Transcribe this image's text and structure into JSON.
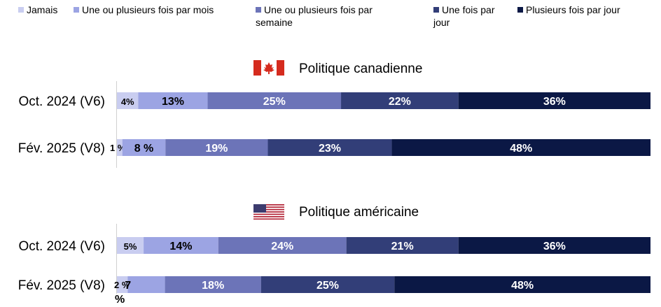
{
  "chart_data": {
    "type": "bar",
    "orientation": "horizontal-stacked-100",
    "legend": {
      "position": "top",
      "entries": [
        {
          "name": "Jamais",
          "color": "#c9cdf0"
        },
        {
          "name": "Une ou plusieurs fois par mois",
          "color": "#9ca4e3"
        },
        {
          "name": "Une ou plusieurs fois par semaine",
          "color": "#6c74b8"
        },
        {
          "name": "Une fois par jour",
          "color": "#323e78"
        },
        {
          "name": "Plusieurs fois par jour",
          "color": "#0b1845"
        }
      ]
    },
    "sections": [
      {
        "title": "Politique canadienne",
        "flag": "canada-flag",
        "bars": [
          {
            "label": "Oct. 2024 (V6)",
            "values": [
              4,
              13,
              25,
              22,
              36
            ],
            "value_labels": [
              "4%",
              "13%",
              "25%",
              "22%",
              "36%"
            ]
          },
          {
            "label": "Fév. 2025 (V8)",
            "values": [
              1,
              8,
              19,
              23,
              48
            ],
            "value_labels": [
              "1 %",
              "8 %",
              "19%",
              "23%",
              "48%"
            ]
          }
        ]
      },
      {
        "title": "Politique américaine",
        "flag": "usa-flag",
        "bars": [
          {
            "label": "Oct. 2024 (V6)",
            "values": [
              5,
              14,
              24,
              21,
              36
            ],
            "value_labels": [
              "5%",
              "14%",
              "24%",
              "21%",
              "36%"
            ]
          },
          {
            "label": "Fév. 2025 (V8)",
            "values": [
              2,
              7,
              18,
              25,
              48
            ],
            "value_labels": [
              "2 %",
              "7 %",
              "18%",
              "25%",
              "48%"
            ]
          }
        ]
      }
    ]
  }
}
